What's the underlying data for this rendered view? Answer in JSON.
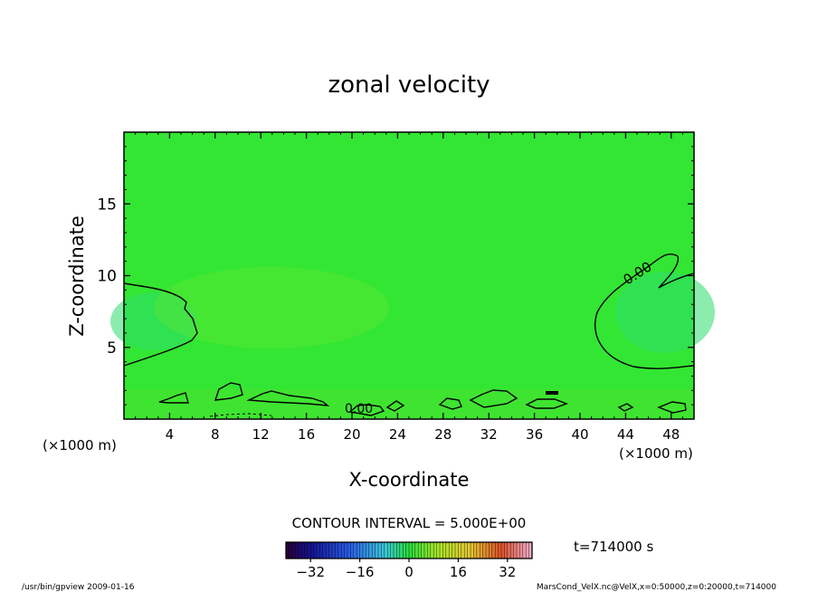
{
  "chart_data": {
    "type": "heatmap",
    "title": "zonal velocity",
    "xlabel": "X-coordinate",
    "ylabel": "Z-coordinate",
    "x_unit_left": "(×1000 m)",
    "x_unit_right": "(×1000 m)",
    "xlim": [
      0,
      50
    ],
    "ylim": [
      0,
      20
    ],
    "x_ticks": [
      4,
      8,
      12,
      16,
      20,
      24,
      28,
      32,
      36,
      40,
      44,
      48
    ],
    "y_ticks": [
      5,
      10,
      15
    ],
    "field_background": "#33e633",
    "contour_labels": [
      "0.00",
      "0.00"
    ],
    "contour_interval_text": "CONTOUR INTERVAL = 5.000E+00",
    "time_text": "t=714000 s",
    "colorbar": {
      "range": [
        -40,
        40
      ],
      "tick_values": [
        -32,
        -16,
        0,
        16,
        32
      ]
    },
    "footer_left": "/usr/bin/gpview  2009-01-16",
    "footer_right": "MarsCond_VelX.nc@VelX,x=0:50000,z=0:20000,t=714000"
  }
}
